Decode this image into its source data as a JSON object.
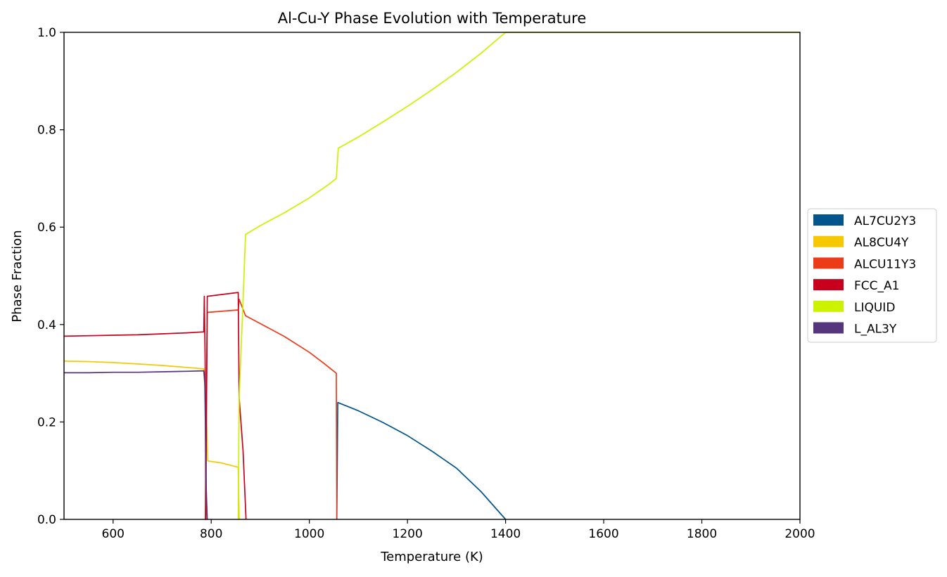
{
  "chart_data": {
    "type": "line",
    "title": "Al-Cu-Y Phase Evolution with Temperature",
    "xlabel": "Temperature (K)",
    "ylabel": "Phase Fraction",
    "xlim": [
      500,
      2000
    ],
    "ylim": [
      0,
      1.0
    ],
    "xticks": [
      600,
      800,
      1000,
      1200,
      1400,
      1600,
      1800,
      2000
    ],
    "xtick_labels": [
      "600",
      "800",
      "1000",
      "1200",
      "1400",
      "1600",
      "1800",
      "2000"
    ],
    "yticks": [
      0.0,
      0.2,
      0.4,
      0.6,
      0.8,
      1.0
    ],
    "ytick_labels": [
      "0.0",
      "0.2",
      "0.4",
      "0.6",
      "0.8",
      "1.0"
    ],
    "grid": false,
    "legend_position": "center-right outside",
    "series": [
      {
        "name": "AL7CU2Y3",
        "color": "#00558c",
        "points": [
          [
            1056,
            0
          ],
          [
            1058,
            0.24
          ],
          [
            1100,
            0.223
          ],
          [
            1150,
            0.199
          ],
          [
            1200,
            0.172
          ],
          [
            1250,
            0.14
          ],
          [
            1300,
            0.105
          ],
          [
            1350,
            0.057
          ],
          [
            1400,
            0.0
          ]
        ]
      },
      {
        "name": "AL8CU4Y",
        "color": "#f5c800",
        "points": [
          [
            500,
            0.325
          ],
          [
            550,
            0.324
          ],
          [
            600,
            0.322
          ],
          [
            650,
            0.319
          ],
          [
            700,
            0.316
          ],
          [
            750,
            0.312
          ],
          [
            785,
            0.309
          ],
          [
            790,
            0.22
          ],
          [
            793,
            0.12
          ],
          [
            820,
            0.116
          ],
          [
            855,
            0.107
          ],
          [
            857,
            0.0
          ]
        ]
      },
      {
        "name": "ALCU11Y3",
        "color": "#ec3b17",
        "points": [
          [
            788,
            0
          ],
          [
            792,
            0.425
          ],
          [
            855,
            0.43
          ],
          [
            857,
            0.452
          ],
          [
            870,
            0.418
          ],
          [
            900,
            0.402
          ],
          [
            950,
            0.375
          ],
          [
            1000,
            0.343
          ],
          [
            1030,
            0.32
          ],
          [
            1055,
            0.3
          ],
          [
            1056,
            0.0
          ]
        ]
      },
      {
        "name": "FCC_A1",
        "color": "#c8001e",
        "points": [
          [
            500,
            0.376
          ],
          [
            550,
            0.377
          ],
          [
            600,
            0.378
          ],
          [
            650,
            0.379
          ],
          [
            700,
            0.381
          ],
          [
            750,
            0.383
          ],
          [
            785,
            0.385
          ],
          [
            786,
            0.458
          ],
          [
            788,
            0.3
          ],
          [
            789,
            0.0
          ],
          [
            792,
            0.458
          ],
          [
            855,
            0.466
          ],
          [
            857,
            0.25
          ],
          [
            865,
            0.14
          ],
          [
            871,
            0.0
          ]
        ]
      },
      {
        "name": "LIQUID",
        "color": "#ccf200",
        "points": [
          [
            855,
            0
          ],
          [
            857,
            0.25
          ],
          [
            865,
            0.45
          ],
          [
            870,
            0.585
          ],
          [
            900,
            0.603
          ],
          [
            950,
            0.63
          ],
          [
            1000,
            0.66
          ],
          [
            1040,
            0.688
          ],
          [
            1055,
            0.7
          ],
          [
            1059,
            0.762
          ],
          [
            1100,
            0.785
          ],
          [
            1150,
            0.816
          ],
          [
            1200,
            0.848
          ],
          [
            1250,
            0.882
          ],
          [
            1300,
            0.918
          ],
          [
            1350,
            0.957
          ],
          [
            1400,
            1.0
          ],
          [
            2000,
            1.0
          ]
        ]
      },
      {
        "name": "L_AL3Y",
        "color": "#55357c",
        "points": [
          [
            500,
            0.301
          ],
          [
            550,
            0.301
          ],
          [
            600,
            0.302
          ],
          [
            650,
            0.302
          ],
          [
            700,
            0.303
          ],
          [
            750,
            0.304
          ],
          [
            785,
            0.305
          ],
          [
            787,
            0.28
          ],
          [
            790,
            0.06
          ],
          [
            792,
            0.0
          ]
        ]
      }
    ]
  }
}
